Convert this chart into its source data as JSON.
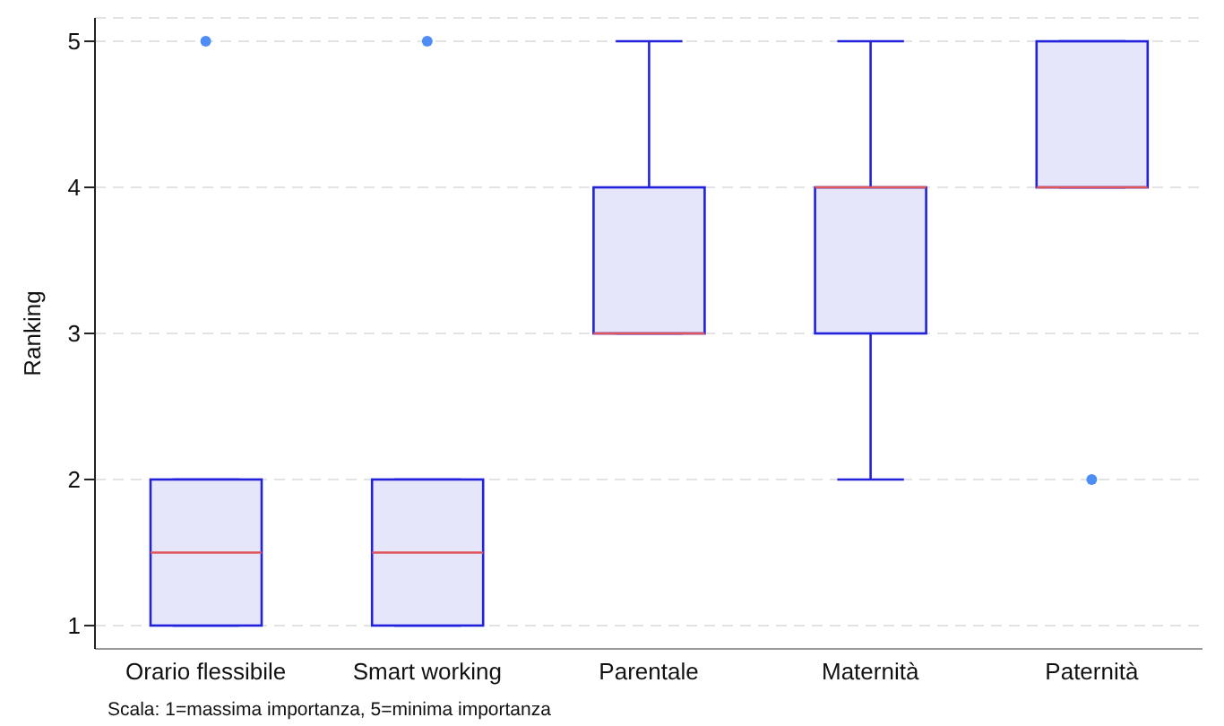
{
  "chart_data": {
    "type": "box",
    "ylabel": "Ranking",
    "categories": [
      "Orario flessibile",
      "Smart working",
      "Parentale",
      "Maternità",
      "Paternità"
    ],
    "boxes": [
      {
        "low": 1,
        "q1": 1,
        "median": 1.5,
        "q3": 2,
        "high": 2,
        "outliers": [
          5
        ]
      },
      {
        "low": 1,
        "q1": 1,
        "median": 1.5,
        "q3": 2,
        "high": 2,
        "outliers": [
          5
        ]
      },
      {
        "low": 3,
        "q1": 3,
        "median": 3,
        "q3": 4,
        "high": 5
      },
      {
        "low": 2,
        "q1": 3,
        "median": 4,
        "q3": 4,
        "high": 5
      },
      {
        "low": 4,
        "q1": 4,
        "median": 4,
        "q3": 5,
        "high": 5,
        "outliers": [
          2
        ]
      }
    ],
    "color": "#2222dd",
    "colors": [
      "#e6e6fa",
      "#e6e6fa",
      "#e6e6fa",
      "#e6e6fa",
      "#e6e6fa"
    ],
    "ylim": [
      0.84,
      5.16
    ],
    "yticks": [
      1,
      2,
      3,
      4,
      5
    ],
    "grid": "y",
    "legend": false,
    "annotations": [
      "Scala: 1=massima importanza, 5=minima importanza"
    ]
  }
}
